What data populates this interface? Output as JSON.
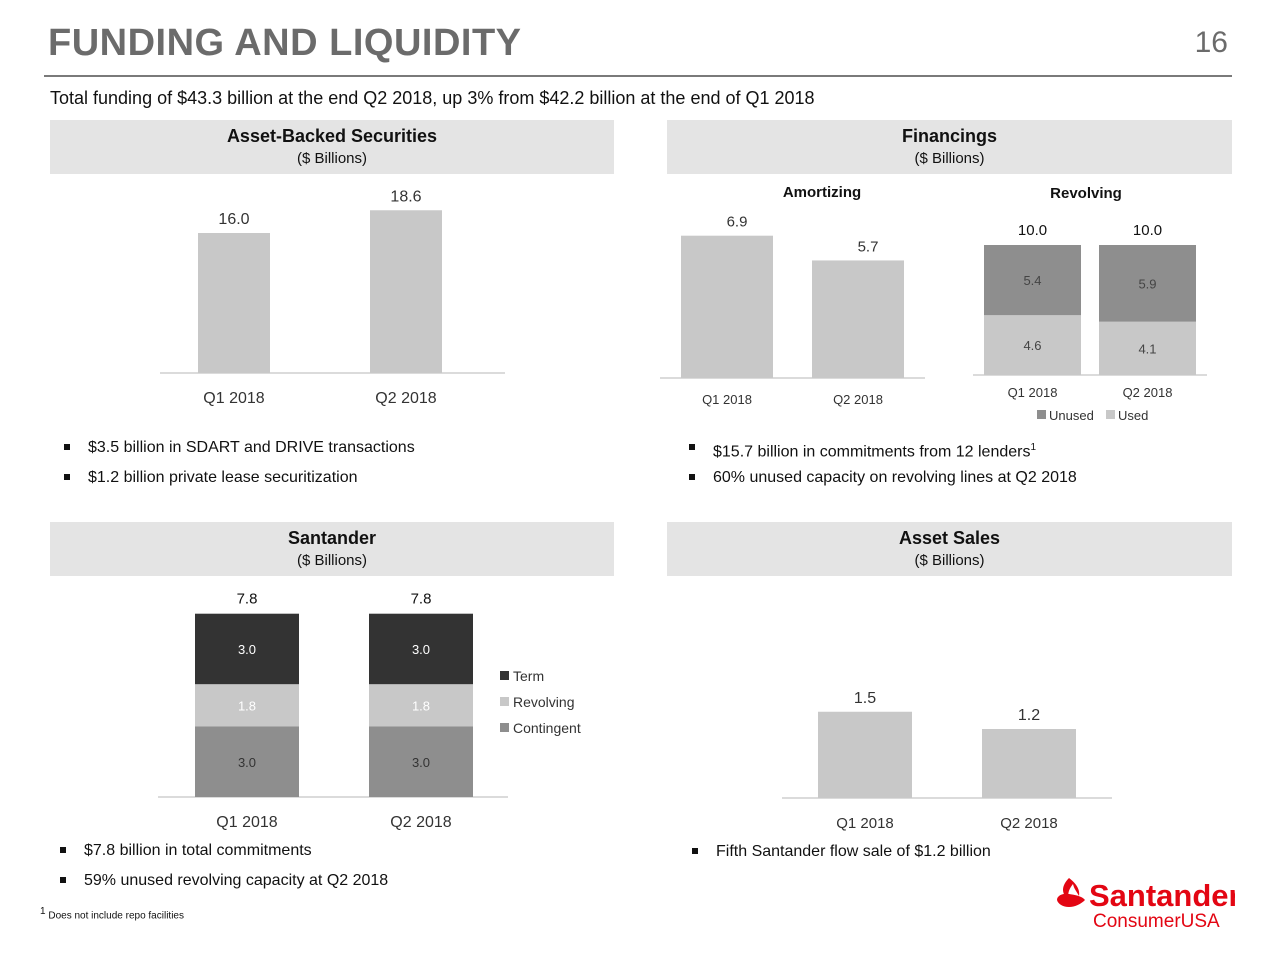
{
  "page": {
    "title": "FUNDING AND LIQUIDITY",
    "page_number": "16",
    "subtitle": "Total funding of $43.3 billion at the end Q2 2018, up 3% from $42.2 billion at the end of Q1 2018",
    "footnote_mark": "1",
    "footnote": "Does not include repo facilities",
    "logo_name": "Santander",
    "logo_sub": "ConsumerUSA"
  },
  "colors": {
    "light": "#c8c8c8",
    "mid": "#8e8e8e",
    "dark": "#333333",
    "logo_red": "#e30613",
    "header_bg": "#e4e4e4"
  },
  "abs": {
    "header": "Asset-Backed Securities",
    "units": "($ Billions)",
    "bullets": [
      "$3.5 billion in SDART and DRIVE transactions",
      "$1.2 billion private lease securitization"
    ]
  },
  "fin": {
    "header": "Financings",
    "units": "($ Billions)",
    "bullets": [
      {
        "text": "$15.7 billion in commitments from 12 lenders",
        "sup": "1"
      },
      {
        "text": "60% unused capacity on revolving lines at Q2 2018",
        "sup": ""
      }
    ]
  },
  "san": {
    "header": "Santander",
    "units": "($ Billions)",
    "bullets": [
      "$7.8 billion in total commitments",
      "59% unused revolving capacity at Q2 2018"
    ]
  },
  "sales": {
    "header": "Asset Sales",
    "units": "($ Billions)",
    "bullets": [
      "Fifth Santander flow sale of $1.2 billion"
    ]
  },
  "chart_data": [
    {
      "id": "abs",
      "type": "bar",
      "title": "Asset-Backed Securities",
      "categories": [
        "Q1 2018",
        "Q2 2018"
      ],
      "values": [
        16.0,
        18.6
      ],
      "value_labels": [
        "16.0",
        "18.6"
      ],
      "ylim": [
        0,
        20
      ]
    },
    {
      "id": "amort",
      "type": "bar",
      "title": "Amortizing",
      "categories": [
        "Q1 2018",
        "Q2 2018"
      ],
      "values": [
        6.9,
        5.7
      ],
      "value_labels": [
        "6.9",
        "5.7"
      ],
      "ylim": [
        0,
        8
      ]
    },
    {
      "id": "revolving",
      "type": "bar",
      "stacked": true,
      "title": "Revolving",
      "categories": [
        "Q1 2018",
        "Q2 2018"
      ],
      "totals": [
        10.0,
        10.0
      ],
      "total_labels": [
        "10.0",
        "10.0"
      ],
      "series": [
        {
          "name": "Used",
          "values": [
            4.6,
            4.1
          ],
          "labels": [
            "4.6",
            "4.1"
          ]
        },
        {
          "name": "Unused",
          "values": [
            5.4,
            5.9
          ],
          "labels": [
            "5.4",
            "5.9"
          ]
        }
      ],
      "legend": [
        "Unused",
        "Used"
      ],
      "legend_position": "bottom-right",
      "ylim": [
        0,
        10
      ]
    },
    {
      "id": "santander",
      "type": "bar",
      "stacked": true,
      "title": "Santander",
      "categories": [
        "Q1 2018",
        "Q2 2018"
      ],
      "totals": [
        7.8,
        7.8
      ],
      "total_labels": [
        "7.8",
        "7.8"
      ],
      "series": [
        {
          "name": "Contingent",
          "values": [
            3.0,
            3.0
          ],
          "labels": [
            "3.0",
            "3.0"
          ]
        },
        {
          "name": "Revolving",
          "values": [
            1.8,
            1.8
          ],
          "labels": [
            "1.8",
            "1.8"
          ]
        },
        {
          "name": "Term",
          "values": [
            3.0,
            3.0
          ],
          "labels": [
            "3.0",
            "3.0"
          ]
        }
      ],
      "legend": [
        "Term",
        "Revolving",
        "Contingent"
      ],
      "legend_position": "right",
      "ylim": [
        0,
        8
      ]
    },
    {
      "id": "sales",
      "type": "bar",
      "title": "Asset Sales",
      "categories": [
        "Q1 2018",
        "Q2 2018"
      ],
      "values": [
        1.5,
        1.2
      ],
      "value_labels": [
        "1.5",
        "1.2"
      ],
      "ylim": [
        0,
        2
      ]
    }
  ]
}
